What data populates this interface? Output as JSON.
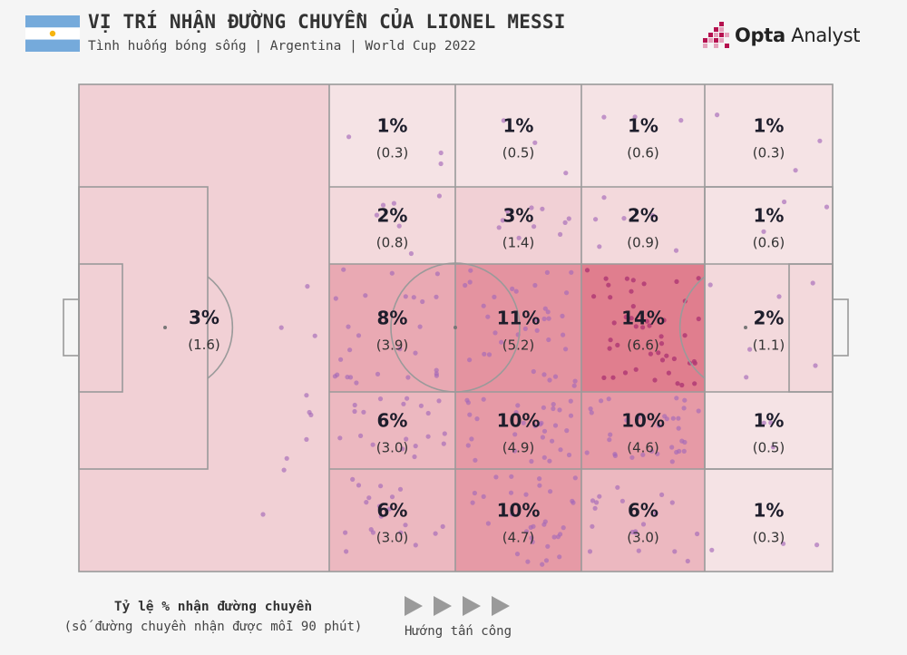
{
  "header": {
    "title": "VỊ TRÍ NHẬN ĐƯỜNG CHUYỀN CỦA LIONEL MESSI",
    "subtitle": "Tình huống bóng sống | Argentina | World Cup 2022",
    "flag_colors": {
      "sky": "#75aadb",
      "white": "#ffffff",
      "sun": "#f6b40e"
    }
  },
  "brand": {
    "strong": "Opta",
    "light": " Analyst",
    "icon": "opta-pixel-logo-icon",
    "color": "#b5114f"
  },
  "legend": {
    "title": "Tỷ lệ % nhận đường chuyền",
    "subtitle": "(số đường chuyền nhận được mỗi 90 phút)",
    "direction_label": "Hướng tấn công",
    "arrow_icon": "play-arrow-icon",
    "arrow_color": "#9a9a9a"
  },
  "colors": {
    "line": "#9a9a9a",
    "dot": "#a569b8",
    "dot_stroke": "#7d3a95",
    "heat_max": "#e07e8e",
    "heat_min": "#f7efef"
  },
  "chart_data": {
    "type": "heatmap",
    "title": "VỊ TRÍ NHẬN ĐƯỜNG CHUYỀN CỦA LIONEL MESSI",
    "note": "Pitch zones (left half as one zone; right half split into 4 columns × 5 rows). Attack direction left → right.",
    "columns": [
      "own half",
      "col 1",
      "col 2",
      "col 3",
      "col 4"
    ],
    "rows": [
      "row 1",
      "row 2",
      "row 3",
      "row 4",
      "row 5"
    ],
    "zones": [
      {
        "id": "own-half",
        "col": 0,
        "row": 2,
        "pct": "3%",
        "per90": "(1.6)",
        "value": 3,
        "rate": 1.6
      },
      {
        "id": "c1r1",
        "col": 1,
        "row": 0,
        "pct": "1%",
        "per90": "(0.3)",
        "value": 1,
        "rate": 0.3
      },
      {
        "id": "c2r1",
        "col": 2,
        "row": 0,
        "pct": "1%",
        "per90": "(0.5)",
        "value": 1,
        "rate": 0.5
      },
      {
        "id": "c3r1",
        "col": 3,
        "row": 0,
        "pct": "1%",
        "per90": "(0.6)",
        "value": 1,
        "rate": 0.6
      },
      {
        "id": "c4r1",
        "col": 4,
        "row": 0,
        "pct": "1%",
        "per90": "(0.3)",
        "value": 1,
        "rate": 0.3
      },
      {
        "id": "c1r2",
        "col": 1,
        "row": 1,
        "pct": "2%",
        "per90": "(0.8)",
        "value": 2,
        "rate": 0.8
      },
      {
        "id": "c2r2",
        "col": 2,
        "row": 1,
        "pct": "3%",
        "per90": "(1.4)",
        "value": 3,
        "rate": 1.4
      },
      {
        "id": "c3r2",
        "col": 3,
        "row": 1,
        "pct": "2%",
        "per90": "(0.9)",
        "value": 2,
        "rate": 0.9
      },
      {
        "id": "c4r2",
        "col": 4,
        "row": 1,
        "pct": "1%",
        "per90": "(0.6)",
        "value": 1,
        "rate": 0.6
      },
      {
        "id": "c1r3",
        "col": 1,
        "row": 2,
        "pct": "8%",
        "per90": "(3.9)",
        "value": 8,
        "rate": 3.9
      },
      {
        "id": "c2r3",
        "col": 2,
        "row": 2,
        "pct": "11%",
        "per90": "(5.2)",
        "value": 11,
        "rate": 5.2
      },
      {
        "id": "c3r3",
        "col": 3,
        "row": 2,
        "pct": "14%",
        "per90": "(6.6)",
        "value": 14,
        "rate": 6.6
      },
      {
        "id": "c4r3",
        "col": 4,
        "row": 2,
        "pct": "2%",
        "per90": "(1.1)",
        "value": 2,
        "rate": 1.1
      },
      {
        "id": "c1r4",
        "col": 1,
        "row": 3,
        "pct": "6%",
        "per90": "(3.0)",
        "value": 6,
        "rate": 3.0
      },
      {
        "id": "c2r4",
        "col": 2,
        "row": 3,
        "pct": "10%",
        "per90": "(4.9)",
        "value": 10,
        "rate": 4.9
      },
      {
        "id": "c3r4",
        "col": 3,
        "row": 3,
        "pct": "10%",
        "per90": "(4.6)",
        "value": 10,
        "rate": 4.6
      },
      {
        "id": "c4r4",
        "col": 4,
        "row": 3,
        "pct": "1%",
        "per90": "(0.5)",
        "value": 1,
        "rate": 0.5
      },
      {
        "id": "c1r5",
        "col": 1,
        "row": 4,
        "pct": "6%",
        "per90": "(3.0)",
        "value": 6,
        "rate": 3.0
      },
      {
        "id": "c2r5",
        "col": 2,
        "row": 4,
        "pct": "10%",
        "per90": "(4.7)",
        "value": 10,
        "rate": 4.7
      },
      {
        "id": "c3r5",
        "col": 3,
        "row": 4,
        "pct": "6%",
        "per90": "(3.0)",
        "value": 6,
        "rate": 3.0
      },
      {
        "id": "c4r5",
        "col": 4,
        "row": 4,
        "pct": "1%",
        "per90": "(0.3)",
        "value": 1,
        "rate": 0.3
      }
    ]
  }
}
